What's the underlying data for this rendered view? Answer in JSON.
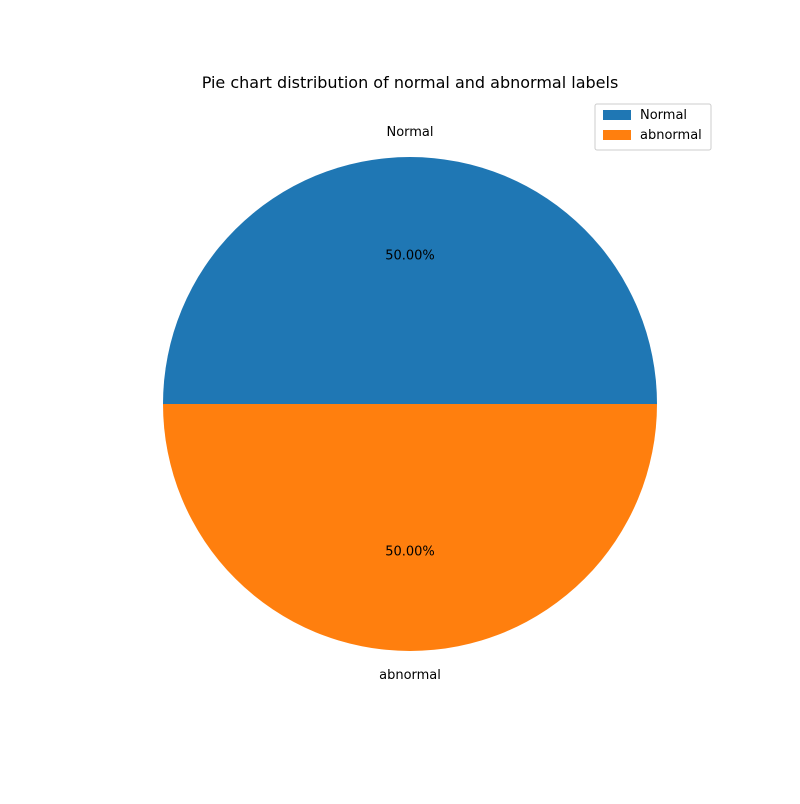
{
  "chart_data": {
    "type": "pie",
    "title": "Pie chart distribution of normal and abnormal labels",
    "slices": [
      {
        "label": "Normal",
        "value": 50.0,
        "pct_label": "50.00%",
        "color": "#1f77b4"
      },
      {
        "label": "abnormal",
        "value": 50.0,
        "pct_label": "50.00%",
        "color": "#ff7f0e"
      }
    ],
    "legend": {
      "placement": "top-right",
      "entries": [
        "Normal",
        "abnormal"
      ]
    }
  }
}
